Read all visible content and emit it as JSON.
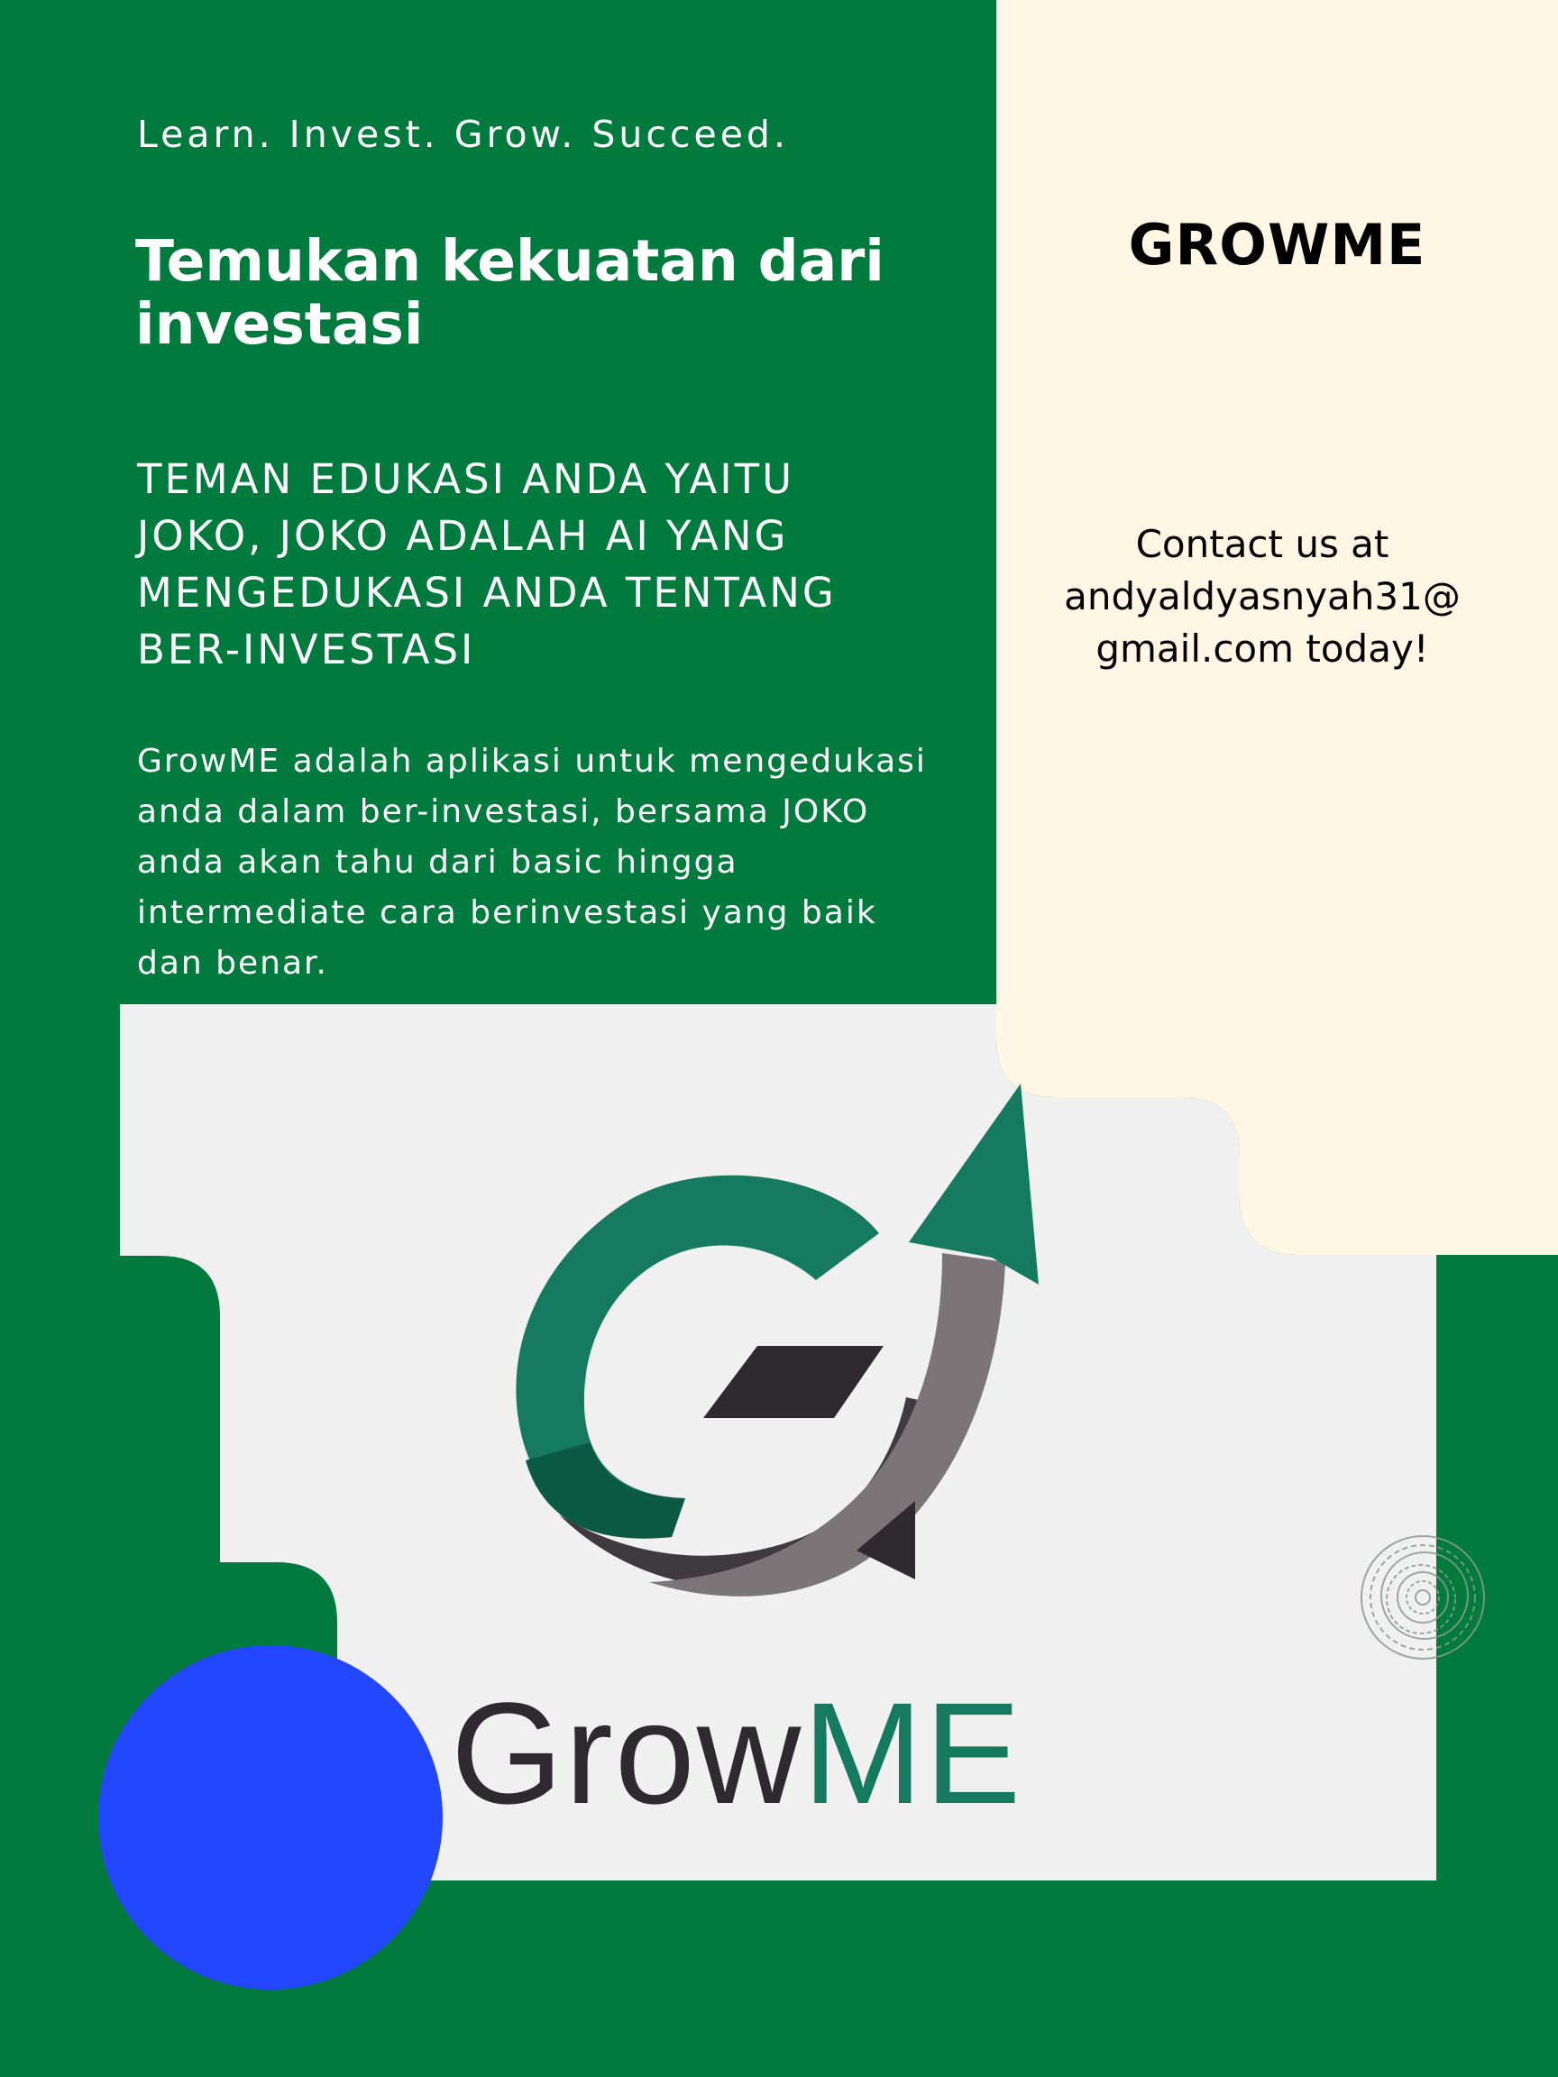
{
  "tagline": "Learn. Invest. Grow. Succeed.",
  "headline": "Temukan kekuatan dari investasi",
  "subheading": "TEMAN EDUKASI ANDA YAITU JOKO, JOKO ADALAH AI YANG MENGEDUKASI ANDA TENTANG BER-INVESTASI",
  "description": "GrowME adalah aplikasi untuk mengedukasi anda dalam ber-investasi, bersama JOKO anda akan tahu dari basic hingga intermediate cara berinvestasi yang baik dan benar.",
  "brand_name": "GROWME",
  "contact": "Contact us at\nandyaldyasnyah31@\ngmail.com today!",
  "logo": {
    "wordmark_part1": "Grow",
    "wordmark_part2": "ME"
  },
  "colors": {
    "background_green": "#007a3d",
    "cream_panel": "#fff7e4",
    "logo_panel": "#f0f0f0",
    "logo_green": "#157a60",
    "logo_dark": "#2e2a30",
    "logo_gray": "#7b7578",
    "blue_circle": "#2347ff"
  }
}
